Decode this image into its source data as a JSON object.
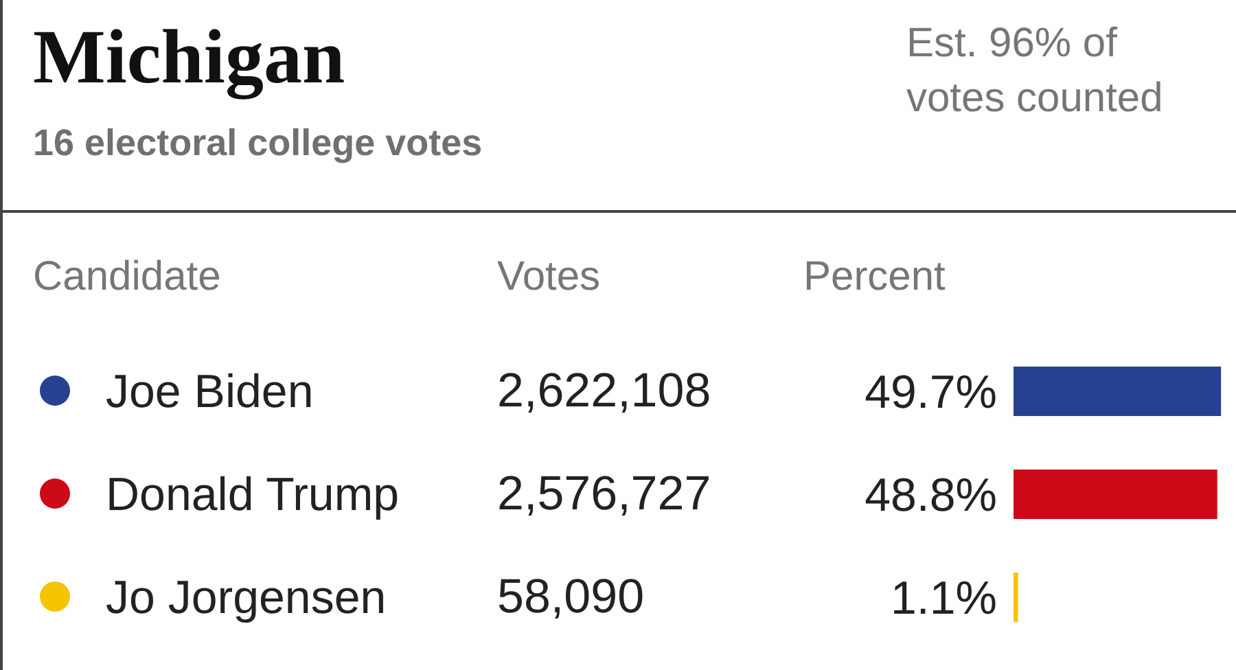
{
  "chart_data": {
    "type": "bar",
    "orientation": "horizontal",
    "title": "Michigan",
    "subtitle": "16 electoral college votes",
    "ylabel": "Candidate",
    "categories": [
      "Joe Biden",
      "Donald Trump",
      "Jo Jorgensen"
    ],
    "values": [
      49.7,
      48.8,
      1.1
    ],
    "colors": [
      "#25418f",
      "#cc0a17",
      "#f5c400"
    ],
    "value_labels": [
      "49.7%",
      "48.8%",
      "1.1%"
    ],
    "xlim": [
      0,
      50
    ],
    "tick_labels": "y",
    "annotations": [
      "Est. 96% of votes counted",
      "Votes",
      "Percent",
      "2,622,108",
      "2,576,727",
      "58,090"
    ]
  }
}
